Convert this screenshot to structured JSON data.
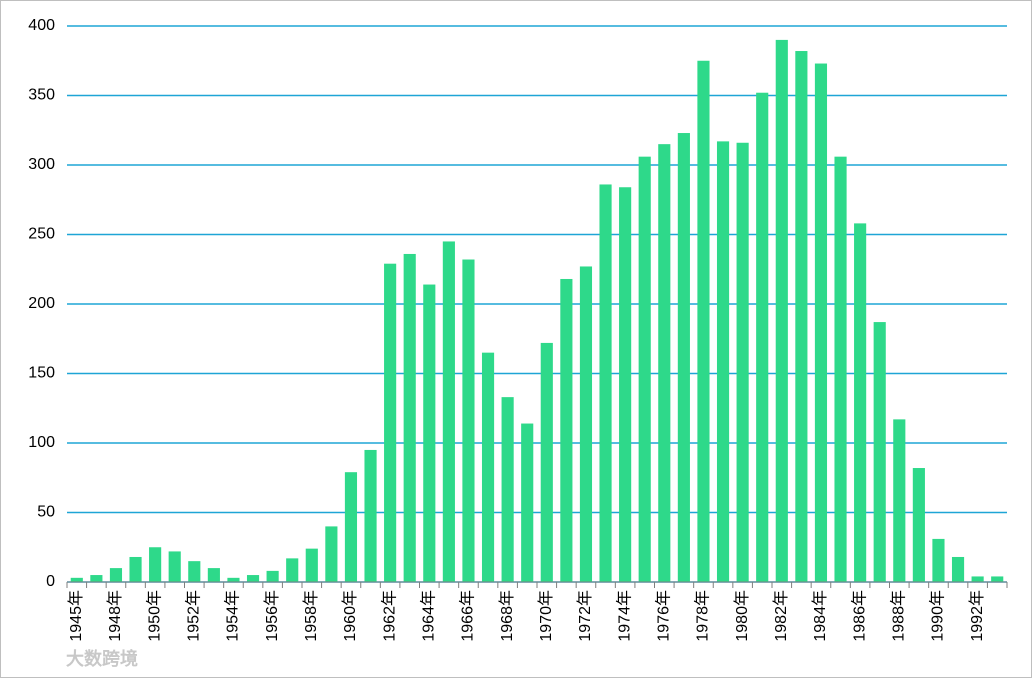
{
  "chart_data": {
    "type": "bar",
    "categories": [
      "1945年",
      null,
      "1948年",
      null,
      "1950年",
      null,
      "1952年",
      null,
      "1954年",
      null,
      "1956年",
      null,
      "1958年",
      null,
      "1960年",
      null,
      "1962年",
      null,
      "1964年",
      null,
      "1966年",
      null,
      "1968年",
      null,
      "1970年",
      null,
      "1972年",
      null,
      "1974年",
      null,
      "1976年",
      null,
      "1978年",
      null,
      "1980年",
      null,
      "1982年",
      null,
      "1984年",
      null,
      "1986年",
      null,
      "1988年",
      null,
      "1990年",
      null,
      "1992年",
      null
    ],
    "values": [
      3,
      5,
      10,
      18,
      25,
      22,
      15,
      10,
      3,
      5,
      8,
      17,
      24,
      40,
      79,
      95,
      229,
      236,
      214,
      245,
      232,
      165,
      133,
      114,
      172,
      218,
      227,
      286,
      284,
      306,
      315,
      323,
      375,
      317,
      316,
      352,
      390,
      382,
      373,
      306,
      258,
      187,
      117,
      82,
      31,
      18,
      4,
      4
    ],
    "color": "#2ed98a",
    "ylim": [
      0,
      400
    ],
    "yticks": [
      0,
      50,
      100,
      150,
      200,
      250,
      300,
      350,
      400
    ],
    "grid": true,
    "grid_color": "#1ea5d6"
  },
  "watermark": "大数跨境"
}
